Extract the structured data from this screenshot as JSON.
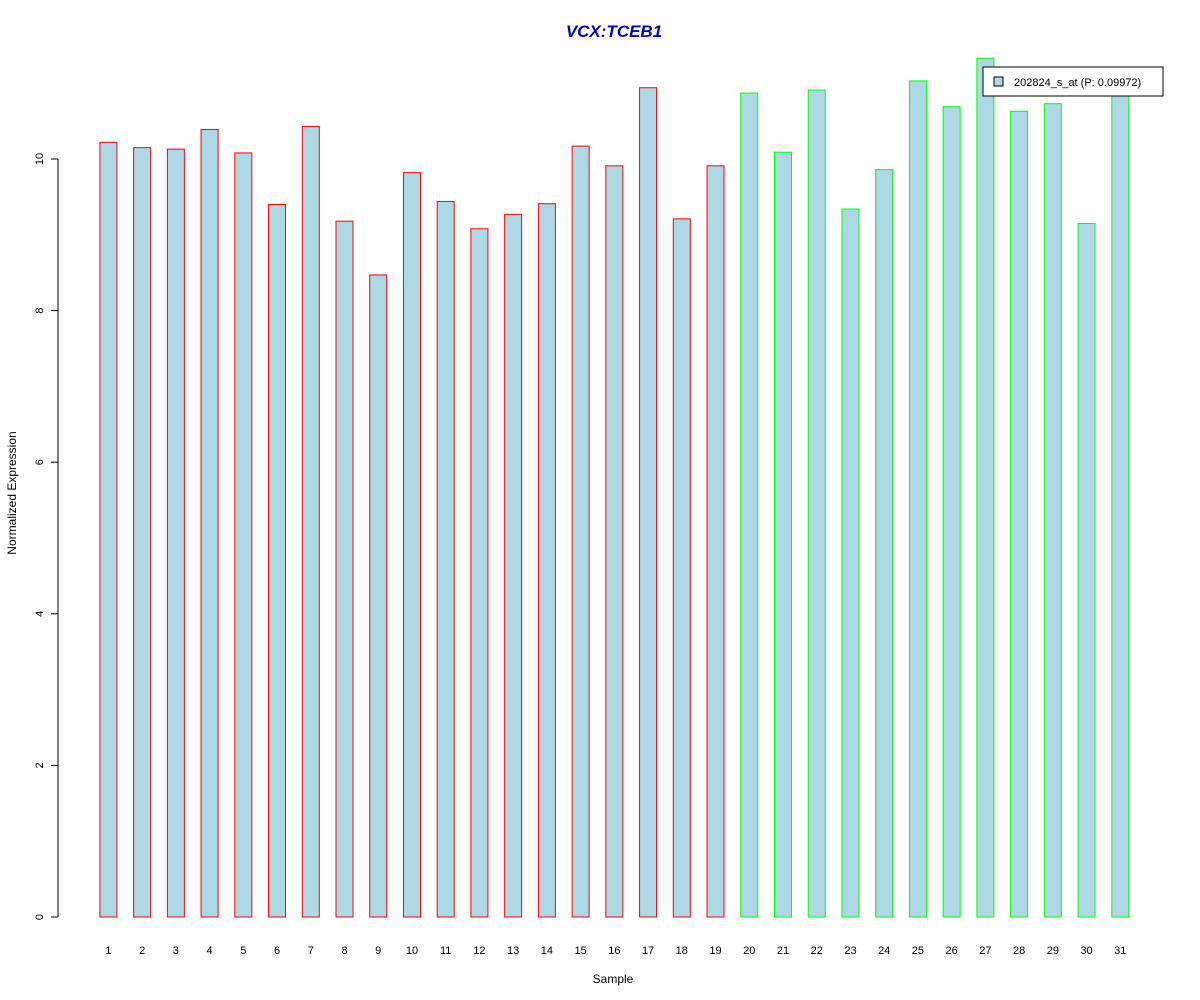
{
  "chart_data": {
    "type": "bar",
    "title": "VCX:TCEB1",
    "xlabel": "Sample",
    "ylabel": "Normalized Expression",
    "categories": [
      "1",
      "2",
      "3",
      "4",
      "5",
      "6",
      "7",
      "8",
      "9",
      "10",
      "11",
      "12",
      "13",
      "14",
      "15",
      "16",
      "17",
      "18",
      "19",
      "20",
      "21",
      "22",
      "23",
      "24",
      "25",
      "26",
      "27",
      "28",
      "29",
      "30",
      "31"
    ],
    "series": [
      {
        "name": "202824_s_at (P: 0.09972)",
        "values": [
          10.22,
          10.15,
          10.13,
          10.39,
          10.08,
          9.4,
          10.43,
          9.18,
          8.47,
          9.82,
          9.44,
          9.08,
          9.27,
          9.41,
          10.17,
          9.91,
          10.94,
          9.21,
          9.91,
          10.87,
          10.09,
          10.91,
          9.34,
          9.86,
          11.03,
          10.69,
          11.33,
          10.63,
          10.73,
          9.15,
          10.93
        ]
      }
    ],
    "groups": [
      {
        "from": 1,
        "to": 19,
        "color": "#ff0000"
      },
      {
        "from": 20,
        "to": 31,
        "color": "#00ff00"
      }
    ],
    "ylim": [
      0,
      11.33
    ],
    "yticks": [
      0,
      2,
      4,
      6,
      8,
      10
    ],
    "grid": false,
    "legend_position": "top-right",
    "colors": {
      "bar_fill": "#add8e6",
      "title": "#0000cd",
      "axis": "#000000",
      "legend_border": "#000000"
    }
  }
}
